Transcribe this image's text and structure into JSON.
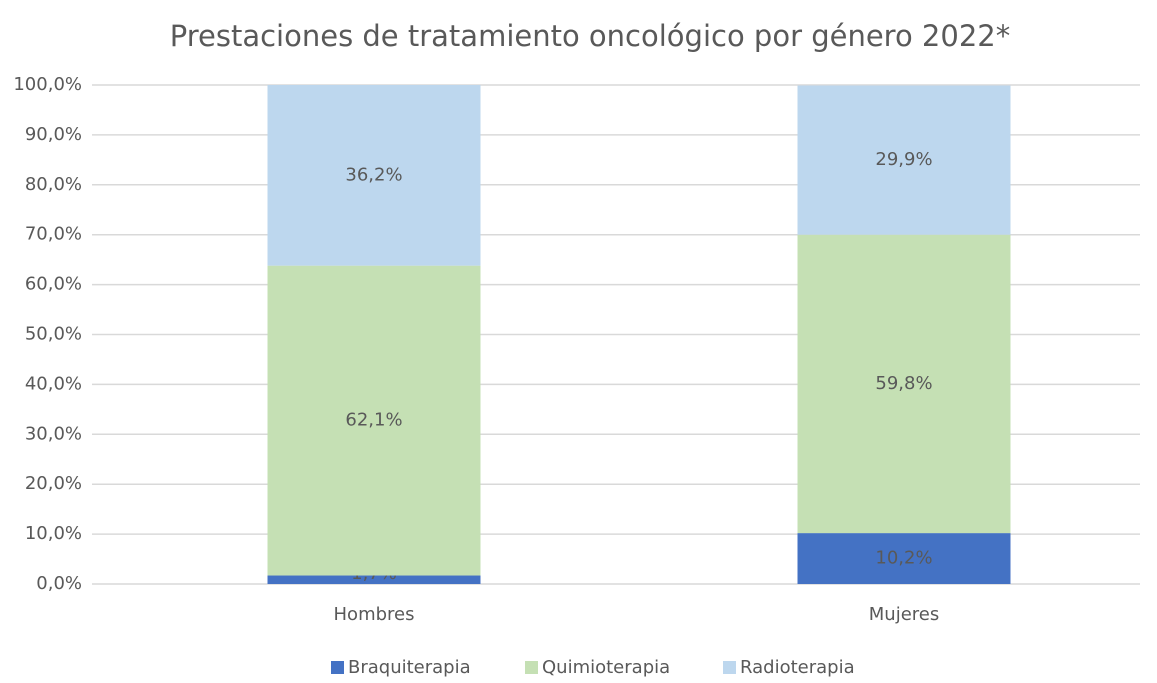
{
  "chart_data": {
    "type": "stacked_bar",
    "title": "Prestaciones de tratamiento oncológico por género 2022*",
    "categories": [
      "Hombres",
      "Mujeres"
    ],
    "series": [
      {
        "name": "Braquiterapia",
        "color": "#4472c4",
        "values": [
          1.7,
          10.2
        ],
        "value_labels": [
          "1,7%",
          "10,2%"
        ]
      },
      {
        "name": "Quimioterapia",
        "color": "#c5e0b4",
        "values": [
          62.1,
          59.8
        ],
        "value_labels": [
          "62,1%",
          "59,8%"
        ]
      },
      {
        "name": "Radioterapia",
        "color": "#bdd7ee",
        "values": [
          36.2,
          29.9
        ],
        "value_labels": [
          "36,2%",
          "29,9%"
        ]
      }
    ],
    "ylim": [
      0,
      100
    ],
    "yticks": [
      {
        "value": 0,
        "label": "0,0%"
      },
      {
        "value": 10,
        "label": "10,0%"
      },
      {
        "value": 20,
        "label": "20,0%"
      },
      {
        "value": 30,
        "label": "30,0%"
      },
      {
        "value": 40,
        "label": "40,0%"
      },
      {
        "value": 50,
        "label": "50,0%"
      },
      {
        "value": 60,
        "label": "60,0%"
      },
      {
        "value": 70,
        "label": "70,0%"
      },
      {
        "value": 80,
        "label": "80,0%"
      },
      {
        "value": 90,
        "label": "90,0%"
      },
      {
        "value": 100,
        "label": "100,0%"
      }
    ],
    "grid": true,
    "legend": "bottom"
  }
}
